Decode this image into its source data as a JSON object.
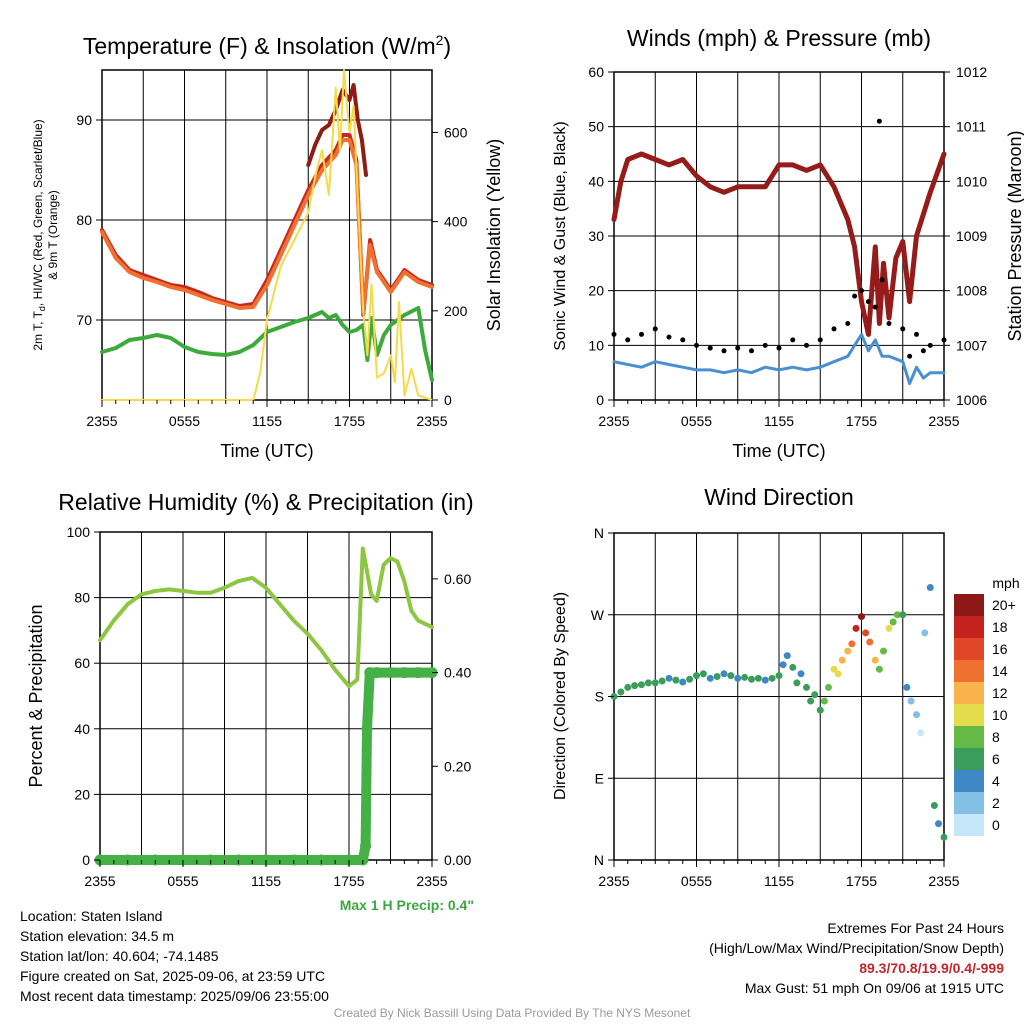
{
  "charts": {
    "temp": {
      "title": "Temperature (F) & Insolation (W/m2)",
      "title_main": "Temperature (F) & Insolation (W/m",
      "title_sup": "2",
      "title_end": ")",
      "ylabel_line1_a": "2m T, T",
      "ylabel_line1_sub": "d",
      "ylabel_line1_b": ", HI/WC (Red, Green, Scarlet/Blue)",
      "ylabel_line2": "& 9m T (Orange)",
      "ylabel_right": "Solar Insolation (Yellow)",
      "xlabel": "Time (UTC)"
    },
    "wind": {
      "title": "Winds (mph) & Pressure (mb)",
      "ylabel": "Sonic Wind & Gust (Blue, Black)",
      "ylabel_right": "Station Pressure (Maroon)",
      "xlabel": "Time (UTC)"
    },
    "rh": {
      "title": "Relative Humidity (%) & Precipitation (in)",
      "ylabel": "Percent & Precipitation",
      "annotation": "Max 1 H Precip: 0.4\""
    },
    "dir": {
      "title": "Wind Direction",
      "ylabel": "Direction (Colored By Speed)",
      "colorbar_title": "mph"
    }
  },
  "chart_data": [
    {
      "id": "temp",
      "type": "line",
      "x_ticks": [
        "2355",
        "0555",
        "1155",
        "1755",
        "2355"
      ],
      "x_hours": [
        0,
        6,
        12,
        18,
        24
      ],
      "ylim": [
        62,
        95
      ],
      "y_ticks": [
        70,
        80,
        90
      ],
      "ylim_right": [
        0,
        740
      ],
      "y_ticks_right": [
        0,
        200,
        400,
        600
      ],
      "series": [
        {
          "color": "#c42a22",
          "axis": "left",
          "x": [
            0,
            1,
            2,
            3,
            4,
            5,
            6,
            7,
            8,
            9,
            10,
            11,
            12,
            13,
            14,
            15,
            16,
            17,
            17.5,
            18,
            18.5,
            19,
            19.5,
            20,
            21,
            22,
            23,
            24
          ],
          "y": [
            79,
            76.5,
            75,
            74.5,
            74,
            73.5,
            73.3,
            72.8,
            72.2,
            71.8,
            71.4,
            71.6,
            74,
            77,
            80,
            83,
            85.5,
            87,
            88.5,
            88.5,
            86,
            70.5,
            78,
            75,
            73,
            75,
            74,
            73.5
          ]
        },
        {
          "color": "#f07030",
          "axis": "left",
          "x": [
            0,
            1,
            2,
            3,
            4,
            5,
            6,
            7,
            8,
            9,
            10,
            11,
            12,
            13,
            14,
            15,
            16,
            17,
            17.5,
            18,
            18.5,
            19,
            19.5,
            20,
            21,
            22,
            23,
            24
          ],
          "y": [
            78.8,
            76.2,
            74.8,
            74.2,
            73.8,
            73.3,
            73,
            72.5,
            72,
            71.6,
            71.2,
            71.3,
            73.5,
            76.5,
            79.5,
            82.5,
            85,
            86.5,
            88,
            88,
            85.5,
            70.8,
            77.5,
            74.8,
            72.8,
            74.8,
            73.8,
            73.3
          ]
        },
        {
          "color": "#8e1b14",
          "axis": "left",
          "x": [
            15,
            15.5,
            16,
            16.5,
            17,
            17.5,
            18,
            18.3,
            18.6,
            18.9,
            19.2
          ],
          "y": [
            85.5,
            87.5,
            89,
            89.5,
            91,
            93,
            92,
            93.5,
            90,
            88,
            84.5
          ]
        },
        {
          "color": "#3daa3c",
          "axis": "left",
          "x": [
            0,
            1,
            2,
            3,
            4,
            5,
            6,
            7,
            8,
            9,
            10,
            11,
            12,
            13,
            14,
            15,
            16,
            16.5,
            17,
            17.5,
            18,
            18.5,
            19,
            19.3,
            19.6,
            20,
            20.5,
            21,
            22,
            23,
            23.5,
            24
          ],
          "y": [
            66.8,
            67.2,
            68,
            68.2,
            68.5,
            68.2,
            67.3,
            66.8,
            66.6,
            66.5,
            66.8,
            67.5,
            68.8,
            69.3,
            69.8,
            70.2,
            70.8,
            70.2,
            70.5,
            69.5,
            68.8,
            69,
            69.5,
            66,
            70.2,
            66.5,
            68.5,
            69.5,
            70.5,
            71.2,
            67,
            64
          ]
        },
        {
          "color": "#f5da4a",
          "axis": "right",
          "x": [
            0,
            4,
            8,
            10,
            11,
            11.5,
            12,
            13,
            14,
            15,
            15.5,
            16,
            16.5,
            17,
            17.3,
            17.6,
            18,
            18.3,
            18.6,
            19,
            19.3,
            19.6,
            20,
            20.5,
            21,
            21.3,
            21.6,
            22,
            22.5,
            23,
            24
          ],
          "y": [
            0,
            0,
            0,
            0,
            0,
            60,
            180,
            300,
            360,
            420,
            500,
            560,
            460,
            700,
            560,
            740,
            600,
            660,
            450,
            200,
            100,
            260,
            50,
            60,
            100,
            40,
            220,
            10,
            70,
            10,
            0
          ]
        }
      ]
    },
    {
      "id": "wind",
      "type": "line",
      "x_ticks": [
        "2355",
        "0555",
        "1155",
        "1755",
        "2355"
      ],
      "x_hours": [
        0,
        6,
        12,
        18,
        24
      ],
      "ylim": [
        0,
        60
      ],
      "y_ticks": [
        0,
        10,
        20,
        30,
        40,
        50,
        60
      ],
      "ylim_right": [
        1006,
        1012
      ],
      "y_ticks_right": [
        1006,
        1007,
        1008,
        1009,
        1010,
        1011,
        1012
      ],
      "max_gust": {
        "x": 19.3,
        "y": 51
      },
      "series": [
        {
          "color": "#951c1b",
          "axis": "right",
          "x": [
            0,
            0.5,
            1,
            2,
            3,
            4,
            5,
            6,
            7,
            8,
            9,
            10,
            11,
            12,
            13,
            14,
            15,
            16,
            17,
            17.5,
            18,
            18.5,
            19,
            19.3,
            19.6,
            20,
            20.5,
            21,
            21.5,
            22,
            23,
            24
          ],
          "y": [
            1009.3,
            1010,
            1010.4,
            1010.5,
            1010.4,
            1010.3,
            1010.4,
            1010.1,
            1009.9,
            1009.8,
            1009.9,
            1009.9,
            1009.9,
            1010.3,
            1010.3,
            1010.2,
            1010.3,
            1009.9,
            1009.3,
            1008.8,
            1007.8,
            1007.2,
            1008.8,
            1007.4,
            1008.5,
            1007.5,
            1008.6,
            1008.9,
            1007.8,
            1009.0,
            1009.8,
            1010.5
          ]
        },
        {
          "color": "#4a8fcf",
          "axis": "left",
          "x": [
            0,
            1,
            2,
            3,
            4,
            5,
            6,
            7,
            8,
            9,
            10,
            11,
            12,
            13,
            14,
            15,
            16,
            17,
            17.5,
            18,
            18.5,
            19,
            19.5,
            20,
            21,
            21.5,
            22,
            22.5,
            23,
            24
          ],
          "y": [
            7,
            6.5,
            6,
            7,
            6.5,
            6,
            5.5,
            5.5,
            5,
            5.5,
            5,
            6,
            5.5,
            6,
            5.5,
            6,
            7,
            8,
            10,
            12,
            9,
            11,
            8,
            8,
            7,
            3,
            6,
            4,
            5,
            5
          ]
        },
        {
          "color": "#000000",
          "axis": "left",
          "style": "dots",
          "x": [
            0,
            1,
            2,
            3,
            4,
            5,
            6,
            7,
            8,
            9,
            10,
            11,
            12,
            13,
            14,
            15,
            16,
            17,
            17.5,
            18,
            18.5,
            19,
            19.5,
            20,
            21,
            21.5,
            22,
            22.5,
            23,
            24
          ],
          "y": [
            12,
            11,
            12,
            13,
            11.5,
            11,
            10,
            9.5,
            9,
            9.5,
            9,
            10,
            9.5,
            11,
            10,
            11,
            13,
            14,
            19,
            20,
            18,
            17,
            22,
            14,
            13,
            8,
            12,
            9,
            10,
            11
          ]
        }
      ]
    },
    {
      "id": "rh",
      "type": "line",
      "x_ticks": [
        "2355",
        "0555",
        "1155",
        "1755",
        "2355"
      ],
      "x_hours": [
        0,
        6,
        12,
        18,
        24
      ],
      "ylim": [
        0,
        100
      ],
      "y_ticks": [
        0,
        20,
        40,
        60,
        80,
        100
      ],
      "ylim_right": [
        0,
        0.7
      ],
      "y_ticks_right": [
        "0.00",
        "0.20",
        "0.40",
        "0.60"
      ],
      "series": [
        {
          "color": "#8dc640",
          "axis": "left",
          "x": [
            0,
            1,
            2,
            3,
            4,
            5,
            6,
            7,
            8,
            9,
            10,
            11,
            12,
            13,
            14,
            15,
            16,
            17,
            18,
            18.6,
            19,
            19.3,
            19.6,
            20,
            20.5,
            21,
            21.5,
            22,
            22.5,
            23,
            24
          ],
          "y": [
            67,
            73,
            78,
            81,
            82,
            82.5,
            82,
            81.5,
            81.5,
            83,
            85,
            86,
            83,
            78,
            73,
            69,
            64,
            58,
            53,
            55,
            95,
            88,
            81,
            79,
            90,
            92,
            91,
            85,
            76,
            73,
            71
          ]
        },
        {
          "color": "#44b046",
          "axis": "right",
          "style": "precip",
          "x": [
            0,
            2,
            4,
            6,
            8,
            10,
            12,
            14,
            16,
            18,
            19,
            19.2,
            19.3,
            19.5,
            20,
            21,
            22,
            23,
            24
          ],
          "y": [
            0,
            0,
            0,
            0,
            0,
            0,
            0,
            0,
            0,
            0,
            0,
            0.03,
            0.28,
            0.4,
            0.4,
            0.4,
            0.4,
            0.4,
            0.4
          ]
        }
      ]
    },
    {
      "id": "dir",
      "type": "scatter",
      "x_ticks": [
        "2355",
        "0555",
        "1155",
        "1755",
        "2355"
      ],
      "x_hours": [
        0,
        6,
        12,
        18,
        24
      ],
      "y_ticks": [
        "N",
        "E",
        "S",
        "W",
        "N"
      ],
      "y_degrees": [
        0,
        90,
        180,
        270,
        360
      ],
      "colorbar": {
        "labels": [
          "0",
          "2",
          "4",
          "6",
          "8",
          "10",
          "12",
          "14",
          "16",
          "18",
          "20+"
        ],
        "colors": [
          "#c6e7f7",
          "#84c0e6",
          "#3f88c5",
          "#3a9d5b",
          "#64b947",
          "#e4dc4a",
          "#f8b44a",
          "#f0712f",
          "#e04628",
          "#c4221f",
          "#8e1816"
        ]
      },
      "points": {
        "x": [
          0,
          0.5,
          1,
          1.5,
          2,
          2.5,
          3,
          3.5,
          4,
          4.5,
          5,
          5.5,
          6,
          6.5,
          7,
          7.5,
          8,
          8.5,
          9,
          9.5,
          10,
          10.5,
          11,
          11.5,
          12,
          12.3,
          12.6,
          13,
          13.3,
          13.6,
          14,
          14.3,
          14.6,
          15,
          15.3,
          15.6,
          16,
          16.3,
          16.6,
          17,
          17.3,
          17.6,
          18,
          18.3,
          18.6,
          19,
          19.3,
          19.6,
          20,
          20.3,
          20.6,
          21,
          21.3,
          21.6,
          22,
          22.3,
          22.6,
          23,
          23.3,
          23.6,
          24
        ],
        "y": [
          180,
          185,
          190,
          192,
          193,
          195,
          195,
          197,
          200,
          198,
          196,
          199,
          203,
          205,
          200,
          202,
          205,
          203,
          200,
          201,
          199,
          200,
          198,
          200,
          203,
          215,
          225,
          212,
          195,
          205,
          190,
          175,
          182,
          165,
          175,
          190,
          210,
          205,
          220,
          230,
          238,
          255,
          268,
          250,
          240,
          220,
          210,
          230,
          255,
          262,
          270,
          270,
          190,
          175,
          160,
          140,
          250,
          300,
          60,
          40,
          25
        ],
        "speed": [
          6,
          6,
          6,
          7,
          6,
          7,
          6,
          7,
          5,
          6,
          5,
          7,
          6,
          6,
          5,
          6,
          5,
          6,
          5,
          6,
          6,
          6,
          5,
          6,
          6,
          5,
          5,
          6,
          6,
          5,
          7,
          6,
          7,
          7,
          8,
          9,
          10,
          11,
          12,
          12,
          14,
          18,
          20,
          16,
          14,
          12,
          8,
          9,
          10,
          8,
          8,
          6,
          4,
          3,
          2,
          1,
          3,
          4,
          6,
          5,
          6
        ]
      }
    }
  ],
  "info": {
    "location": "Location: Staten Island",
    "elevation": "Station elevation: 34.5 m",
    "latlon": "Station lat/lon: 40.604; -74.1485",
    "created": "Figure created on Sat, 2025-09-06, at 23:59 UTC",
    "recent": "Most recent data timestamp: 2025/09/06 23:55:00",
    "extremes_title": "Extremes For Past 24 Hours",
    "extremes_legend": "(High/Low/Max Wind/Precipitation/Snow Depth)",
    "extremes_values": "89.3/70.8/19.9/0.4/-999",
    "max_gust": "Max Gust: 51 mph On 09/06 at 1915 UTC",
    "credit": "Created By Nick Bassill Using Data Provided By The NYS Mesonet"
  }
}
